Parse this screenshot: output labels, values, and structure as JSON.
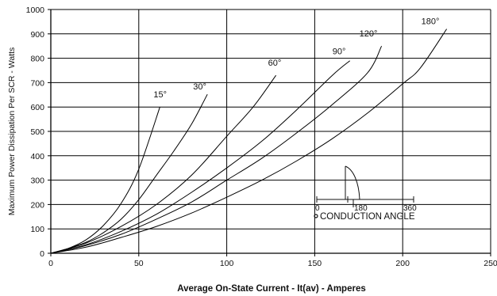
{
  "chart_data": {
    "type": "line",
    "xlabel": "Average On-State Current - It(av) - Amperes",
    "ylabel": "Maximum Power Dissipation Per SCR - Watts",
    "xlim": [
      0,
      250
    ],
    "ylim": [
      0,
      1000
    ],
    "x_ticks": [
      0,
      50,
      100,
      150,
      200,
      250
    ],
    "y_ticks": [
      0,
      100,
      200,
      300,
      400,
      500,
      600,
      700,
      800,
      900,
      1000
    ],
    "grid": "vertical-every-50-and-horizontal-every-100",
    "series": [
      {
        "name": "15°",
        "points": [
          [
            0,
            0
          ],
          [
            10,
            20
          ],
          [
            20,
            55
          ],
          [
            30,
            115
          ],
          [
            40,
            205
          ],
          [
            50,
            345
          ],
          [
            62,
            600
          ]
        ]
      },
      {
        "name": "30°",
        "points": [
          [
            0,
            0
          ],
          [
            10,
            20
          ],
          [
            20,
            45
          ],
          [
            30,
            85
          ],
          [
            40,
            140
          ],
          [
            50,
            220
          ],
          [
            60,
            320
          ],
          [
            70,
            420
          ],
          [
            80,
            530
          ],
          [
            89,
            652
          ]
        ]
      },
      {
        "name": "60°",
        "points": [
          [
            0,
            0
          ],
          [
            20,
            42
          ],
          [
            40,
            110
          ],
          [
            60,
            200
          ],
          [
            80,
            320
          ],
          [
            100,
            480
          ],
          [
            115,
            600
          ],
          [
            128,
            730
          ]
        ]
      },
      {
        "name": "90°",
        "points": [
          [
            0,
            0
          ],
          [
            20,
            35
          ],
          [
            40,
            90
          ],
          [
            60,
            160
          ],
          [
            80,
            250
          ],
          [
            100,
            350
          ],
          [
            120,
            460
          ],
          [
            140,
            590
          ],
          [
            160,
            730
          ],
          [
            170,
            790
          ]
        ]
      },
      {
        "name": "120°",
        "points": [
          [
            0,
            0
          ],
          [
            20,
            32
          ],
          [
            40,
            78
          ],
          [
            60,
            140
          ],
          [
            80,
            210
          ],
          [
            100,
            300
          ],
          [
            120,
            390
          ],
          [
            140,
            495
          ],
          [
            160,
            610
          ],
          [
            180,
            740
          ],
          [
            188,
            850
          ]
        ]
      },
      {
        "name": "180°",
        "points": [
          [
            0,
            0
          ],
          [
            20,
            25
          ],
          [
            40,
            65
          ],
          [
            60,
            110
          ],
          [
            80,
            165
          ],
          [
            100,
            230
          ],
          [
            120,
            300
          ],
          [
            140,
            380
          ],
          [
            160,
            470
          ],
          [
            180,
            575
          ],
          [
            200,
            695
          ],
          [
            210,
            760
          ],
          [
            225,
            920
          ]
        ]
      }
    ],
    "annotation": {
      "title": "CONDUCTION ANGLE",
      "scale_labels": [
        "0",
        "180",
        "360"
      ]
    }
  }
}
